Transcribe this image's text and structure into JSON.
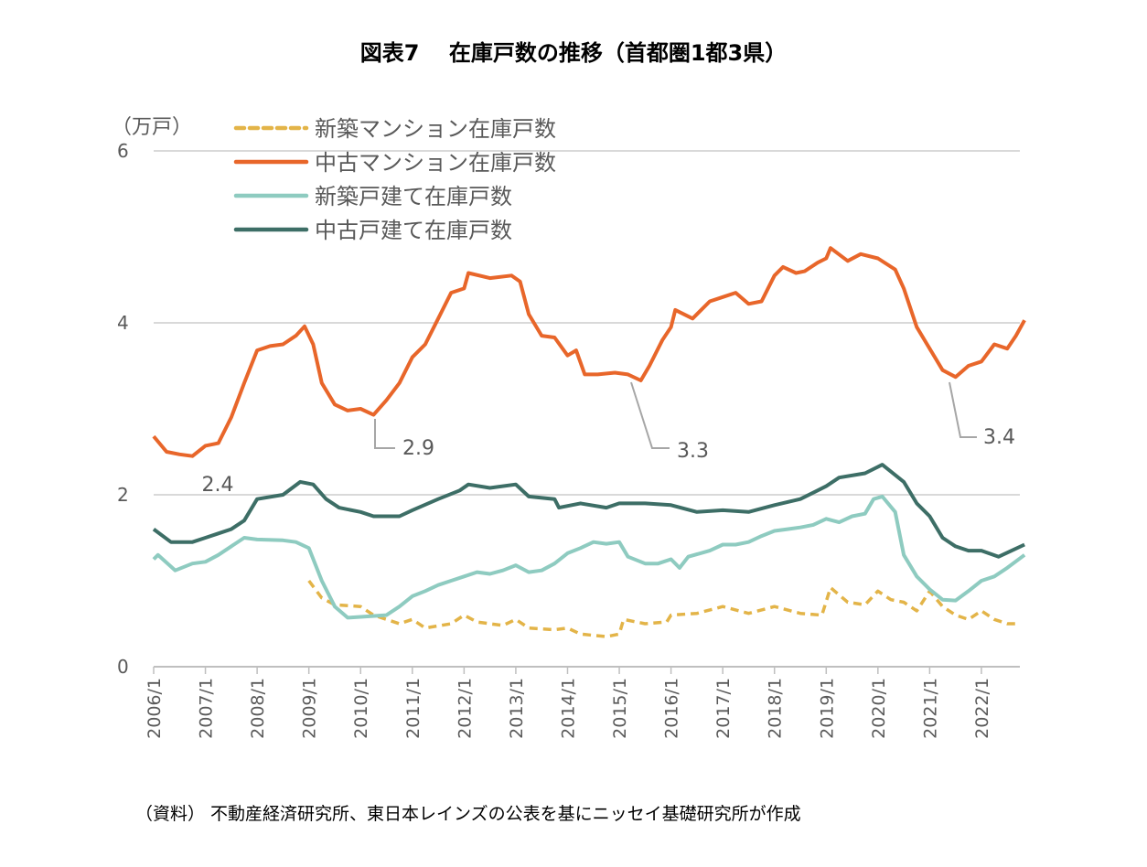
{
  "title": "図表7　 在庫戸数の推移（首都圏1都3県）",
  "source": "（資料）  不動産経済研究所、東日本レインズの公表を基にニッセイ基礎研究所が作成",
  "chart_data": {
    "type": "line",
    "ylabel": "（万戸）",
    "ylim": [
      0,
      6
    ],
    "yticks": [
      "0",
      "2",
      "4",
      "6"
    ],
    "xlim": [
      "2006/1",
      "2022/10"
    ],
    "xticks": [
      "2006/1",
      "2007/1",
      "2008/1",
      "2009/1",
      "2010/1",
      "2011/1",
      "2012/1",
      "2013/1",
      "2014/1",
      "2015/1",
      "2016/1",
      "2017/1",
      "2018/1",
      "2019/1",
      "2020/1",
      "2021/1",
      "2022/1"
    ],
    "grid": "horizontal",
    "legend": "top-left",
    "series": [
      {
        "name": "新築マンション在庫戸数",
        "color": "#E3B448",
        "dashed": true,
        "points": [
          [
            "2009/1",
            1.0
          ],
          [
            "2009/4",
            0.8
          ],
          [
            "2009/7",
            0.72
          ],
          [
            "2010/1",
            0.7
          ],
          [
            "2010/4",
            0.6
          ],
          [
            "2010/10",
            0.5
          ],
          [
            "2011/1",
            0.55
          ],
          [
            "2011/4",
            0.45
          ],
          [
            "2011/10",
            0.5
          ],
          [
            "2012/1",
            0.6
          ],
          [
            "2012/4",
            0.52
          ],
          [
            "2012/10",
            0.48
          ],
          [
            "2013/1",
            0.55
          ],
          [
            "2013/4",
            0.45
          ],
          [
            "2013/10",
            0.43
          ],
          [
            "2014/1",
            0.45
          ],
          [
            "2014/4",
            0.38
          ],
          [
            "2014/10",
            0.35
          ],
          [
            "2015/1",
            0.38
          ],
          [
            "2015/2",
            0.55
          ],
          [
            "2015/7",
            0.5
          ],
          [
            "2015/12",
            0.52
          ],
          [
            "2016/1",
            0.6
          ],
          [
            "2016/7",
            0.62
          ],
          [
            "2017/1",
            0.7
          ],
          [
            "2017/7",
            0.62
          ],
          [
            "2018/1",
            0.7
          ],
          [
            "2018/7",
            0.62
          ],
          [
            "2018/12",
            0.6
          ],
          [
            "2019/2",
            0.92
          ],
          [
            "2019/6",
            0.75
          ],
          [
            "2019/10",
            0.72
          ],
          [
            "2020/1",
            0.88
          ],
          [
            "2020/4",
            0.78
          ],
          [
            "2020/7",
            0.75
          ],
          [
            "2020/10",
            0.65
          ],
          [
            "2021/1",
            0.88
          ],
          [
            "2021/4",
            0.7
          ],
          [
            "2021/7",
            0.6
          ],
          [
            "2021/10",
            0.55
          ],
          [
            "2022/1",
            0.65
          ],
          [
            "2022/4",
            0.55
          ],
          [
            "2022/7",
            0.5
          ],
          [
            "2022/10",
            0.5
          ]
        ]
      },
      {
        "name": "中古マンション在庫戸数",
        "color": "#E8662A",
        "dashed": false,
        "points": [
          [
            "2006/1",
            2.68
          ],
          [
            "2006/4",
            2.5
          ],
          [
            "2006/7",
            2.47
          ],
          [
            "2006/10",
            2.45
          ],
          [
            "2007/1",
            2.57
          ],
          [
            "2007/4",
            2.6
          ],
          [
            "2007/7",
            2.9
          ],
          [
            "2007/10",
            3.3
          ],
          [
            "2008/1",
            3.68
          ],
          [
            "2008/4",
            3.73
          ],
          [
            "2008/7",
            3.75
          ],
          [
            "2008/10",
            3.85
          ],
          [
            "2008/12",
            3.96
          ],
          [
            "2009/2",
            3.75
          ],
          [
            "2009/4",
            3.3
          ],
          [
            "2009/7",
            3.05
          ],
          [
            "2009/10",
            2.98
          ],
          [
            "2010/1",
            3.0
          ],
          [
            "2010/4",
            2.93
          ],
          [
            "2010/7",
            3.1
          ],
          [
            "2010/10",
            3.3
          ],
          [
            "2011/1",
            3.6
          ],
          [
            "2011/4",
            3.75
          ],
          [
            "2011/7",
            4.05
          ],
          [
            "2011/10",
            4.35
          ],
          [
            "2012/1",
            4.4
          ],
          [
            "2012/2",
            4.58
          ],
          [
            "2012/7",
            4.52
          ],
          [
            "2012/12",
            4.55
          ],
          [
            "2013/2",
            4.48
          ],
          [
            "2013/4",
            4.1
          ],
          [
            "2013/7",
            3.85
          ],
          [
            "2013/10",
            3.83
          ],
          [
            "2014/1",
            3.62
          ],
          [
            "2014/3",
            3.68
          ],
          [
            "2014/5",
            3.4
          ],
          [
            "2014/8",
            3.4
          ],
          [
            "2014/12",
            3.42
          ],
          [
            "2015/3",
            3.4
          ],
          [
            "2015/6",
            3.33
          ],
          [
            "2015/8",
            3.5
          ],
          [
            "2015/11",
            3.8
          ],
          [
            "2016/1",
            3.95
          ],
          [
            "2016/2",
            4.15
          ],
          [
            "2016/6",
            4.05
          ],
          [
            "2016/10",
            4.25
          ],
          [
            "2017/1",
            4.3
          ],
          [
            "2017/4",
            4.35
          ],
          [
            "2017/7",
            4.22
          ],
          [
            "2017/10",
            4.25
          ],
          [
            "2018/1",
            4.55
          ],
          [
            "2018/3",
            4.65
          ],
          [
            "2018/6",
            4.58
          ],
          [
            "2018/8",
            4.6
          ],
          [
            "2018/11",
            4.7
          ],
          [
            "2019/1",
            4.75
          ],
          [
            "2019/2",
            4.87
          ],
          [
            "2019/6",
            4.72
          ],
          [
            "2019/9",
            4.8
          ],
          [
            "2020/1",
            4.75
          ],
          [
            "2020/5",
            4.62
          ],
          [
            "2020/7",
            4.4
          ],
          [
            "2020/10",
            3.95
          ],
          [
            "2021/1",
            3.7
          ],
          [
            "2021/4",
            3.45
          ],
          [
            "2021/7",
            3.37
          ],
          [
            "2021/10",
            3.5
          ],
          [
            "2022/1",
            3.55
          ],
          [
            "2022/4",
            3.75
          ],
          [
            "2022/7",
            3.7
          ],
          [
            "2022/9",
            3.85
          ],
          [
            "2022/11",
            4.03
          ]
        ]
      },
      {
        "name": "新築戸建て在庫戸数",
        "color": "#8ECBC0",
        "dashed": false,
        "points": [
          [
            "2006/1",
            1.25
          ],
          [
            "2006/2",
            1.3
          ],
          [
            "2006/6",
            1.12
          ],
          [
            "2006/10",
            1.2
          ],
          [
            "2007/1",
            1.22
          ],
          [
            "2007/4",
            1.3
          ],
          [
            "2007/7",
            1.4
          ],
          [
            "2007/10",
            1.5
          ],
          [
            "2008/1",
            1.48
          ],
          [
            "2008/7",
            1.47
          ],
          [
            "2008/10",
            1.45
          ],
          [
            "2009/1",
            1.38
          ],
          [
            "2009/4",
            1.0
          ],
          [
            "2009/7",
            0.7
          ],
          [
            "2009/10",
            0.57
          ],
          [
            "2010/1",
            0.58
          ],
          [
            "2010/7",
            0.6
          ],
          [
            "2010/10",
            0.7
          ],
          [
            "2011/1",
            0.82
          ],
          [
            "2011/4",
            0.88
          ],
          [
            "2011/7",
            0.95
          ],
          [
            "2011/10",
            1.0
          ],
          [
            "2012/1",
            1.05
          ],
          [
            "2012/4",
            1.1
          ],
          [
            "2012/7",
            1.08
          ],
          [
            "2012/10",
            1.12
          ],
          [
            "2013/1",
            1.18
          ],
          [
            "2013/4",
            1.1
          ],
          [
            "2013/7",
            1.12
          ],
          [
            "2013/10",
            1.2
          ],
          [
            "2014/1",
            1.32
          ],
          [
            "2014/4",
            1.38
          ],
          [
            "2014/7",
            1.45
          ],
          [
            "2014/10",
            1.43
          ],
          [
            "2015/1",
            1.45
          ],
          [
            "2015/3",
            1.28
          ],
          [
            "2015/7",
            1.2
          ],
          [
            "2015/10",
            1.2
          ],
          [
            "2016/1",
            1.25
          ],
          [
            "2016/3",
            1.15
          ],
          [
            "2016/5",
            1.28
          ],
          [
            "2016/10",
            1.35
          ],
          [
            "2017/1",
            1.42
          ],
          [
            "2017/4",
            1.42
          ],
          [
            "2017/7",
            1.45
          ],
          [
            "2017/10",
            1.52
          ],
          [
            "2018/1",
            1.58
          ],
          [
            "2018/4",
            1.6
          ],
          [
            "2018/7",
            1.62
          ],
          [
            "2018/10",
            1.65
          ],
          [
            "2019/1",
            1.72
          ],
          [
            "2019/4",
            1.68
          ],
          [
            "2019/7",
            1.75
          ],
          [
            "2019/10",
            1.78
          ],
          [
            "2019/12",
            1.95
          ],
          [
            "2020/2",
            1.98
          ],
          [
            "2020/5",
            1.8
          ],
          [
            "2020/7",
            1.3
          ],
          [
            "2020/10",
            1.05
          ],
          [
            "2021/1",
            0.9
          ],
          [
            "2021/4",
            0.78
          ],
          [
            "2021/7",
            0.77
          ],
          [
            "2021/10",
            0.88
          ],
          [
            "2022/1",
            1.0
          ],
          [
            "2022/4",
            1.05
          ],
          [
            "2022/7",
            1.15
          ],
          [
            "2022/11",
            1.3
          ]
        ]
      },
      {
        "name": "中古戸建て在庫戸数",
        "color": "#3D6E66",
        "dashed": false,
        "points": [
          [
            "2006/1",
            1.6
          ],
          [
            "2006/5",
            1.45
          ],
          [
            "2006/10",
            1.45
          ],
          [
            "2007/1",
            1.5
          ],
          [
            "2007/4",
            1.55
          ],
          [
            "2007/7",
            1.6
          ],
          [
            "2007/10",
            1.7
          ],
          [
            "2008/1",
            1.95
          ],
          [
            "2008/7",
            2.0
          ],
          [
            "2008/11",
            2.15
          ],
          [
            "2009/2",
            2.12
          ],
          [
            "2009/5",
            1.95
          ],
          [
            "2009/8",
            1.85
          ],
          [
            "2010/1",
            1.8
          ],
          [
            "2010/4",
            1.75
          ],
          [
            "2010/10",
            1.75
          ],
          [
            "2011/1",
            1.82
          ],
          [
            "2011/7",
            1.95
          ],
          [
            "2011/12",
            2.05
          ],
          [
            "2012/2",
            2.12
          ],
          [
            "2012/7",
            2.08
          ],
          [
            "2013/1",
            2.12
          ],
          [
            "2013/4",
            1.98
          ],
          [
            "2013/10",
            1.95
          ],
          [
            "2013/11",
            1.85
          ],
          [
            "2014/4",
            1.9
          ],
          [
            "2014/10",
            1.85
          ],
          [
            "2015/1",
            1.9
          ],
          [
            "2015/7",
            1.9
          ],
          [
            "2016/1",
            1.88
          ],
          [
            "2016/7",
            1.8
          ],
          [
            "2017/1",
            1.82
          ],
          [
            "2017/7",
            1.8
          ],
          [
            "2018/1",
            1.88
          ],
          [
            "2018/7",
            1.95
          ],
          [
            "2019/1",
            2.1
          ],
          [
            "2019/4",
            2.2
          ],
          [
            "2019/10",
            2.25
          ],
          [
            "2020/2",
            2.35
          ],
          [
            "2020/7",
            2.15
          ],
          [
            "2020/10",
            1.9
          ],
          [
            "2021/1",
            1.75
          ],
          [
            "2021/4",
            1.5
          ],
          [
            "2021/7",
            1.4
          ],
          [
            "2021/10",
            1.35
          ],
          [
            "2022/1",
            1.35
          ],
          [
            "2022/5",
            1.28
          ],
          [
            "2022/8",
            1.35
          ],
          [
            "2022/11",
            1.42
          ]
        ]
      }
    ],
    "annotations": [
      {
        "text": "2.4",
        "at": [
          "2006/10",
          2.45
        ]
      },
      {
        "text": "2.9",
        "at": [
          "2010/4",
          2.93
        ]
      },
      {
        "text": "3.3",
        "at": [
          "2015/6",
          3.33
        ]
      },
      {
        "text": "3.4",
        "at": [
          "2021/7",
          3.37
        ]
      }
    ]
  }
}
